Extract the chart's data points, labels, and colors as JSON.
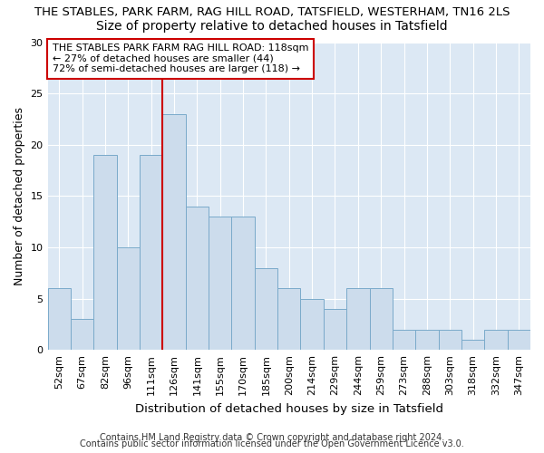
{
  "title1": "THE STABLES, PARK FARM, RAG HILL ROAD, TATSFIELD, WESTERHAM, TN16 2LS",
  "title2": "Size of property relative to detached houses in Tatsfield",
  "xlabel": "Distribution of detached houses by size in Tatsfield",
  "ylabel": "Number of detached properties",
  "categories": [
    "52sqm",
    "67sqm",
    "82sqm",
    "96sqm",
    "111sqm",
    "126sqm",
    "141sqm",
    "155sqm",
    "170sqm",
    "185sqm",
    "200sqm",
    "214sqm",
    "229sqm",
    "244sqm",
    "259sqm",
    "273sqm",
    "288sqm",
    "303sqm",
    "318sqm",
    "332sqm",
    "347sqm"
  ],
  "values": [
    6,
    3,
    19,
    10,
    19,
    23,
    14,
    13,
    13,
    8,
    6,
    5,
    4,
    6,
    6,
    2,
    2,
    2,
    1,
    2,
    2
  ],
  "bar_color": "#ccdcec",
  "bar_edge_color": "#7aaaca",
  "red_line_x": 4.5,
  "annotation_line1": "THE STABLES PARK FARM RAG HILL ROAD: 118sqm",
  "annotation_line2": "← 27% of detached houses are smaller (44)",
  "annotation_line3": "72% of semi-detached houses are larger (118) →",
  "annotation_box_color": "#ffffff",
  "annotation_box_edge": "#cc0000",
  "footer1": "Contains HM Land Registry data © Crown copyright and database right 2024.",
  "footer2": "Contains public sector information licensed under the Open Government Licence v3.0.",
  "ylim": [
    0,
    30
  ],
  "yticks": [
    0,
    5,
    10,
    15,
    20,
    25,
    30
  ],
  "bg_color": "#dce8f4",
  "fig_bg": "#ffffff",
  "grid_color": "#ffffff",
  "title1_fontsize": 9.5,
  "title2_fontsize": 10,
  "ylabel_fontsize": 9,
  "xlabel_fontsize": 9.5,
  "annot_fontsize": 8,
  "tick_fontsize": 8,
  "footer_fontsize": 7
}
